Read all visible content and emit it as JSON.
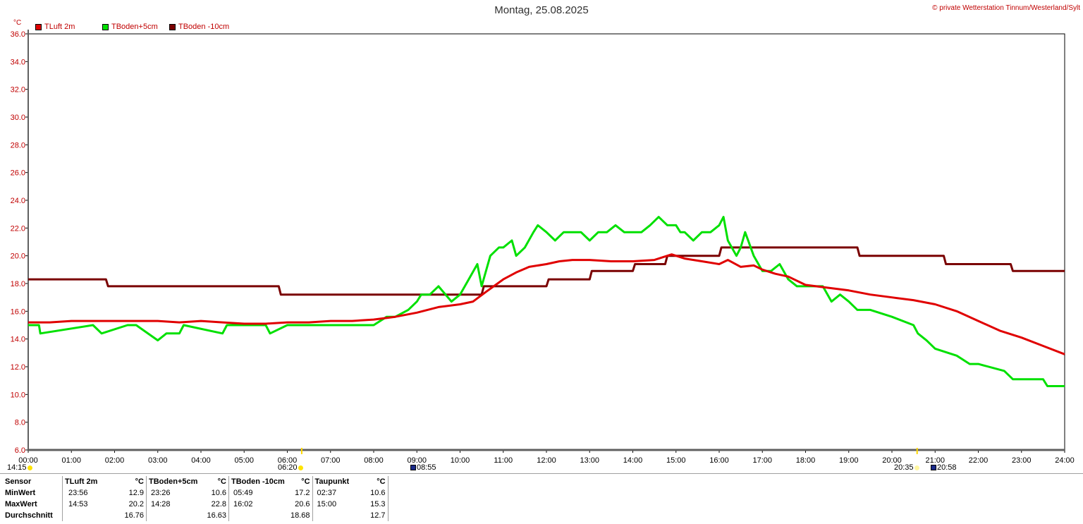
{
  "title": "Montag, 25.08.2025",
  "copyright": "© private Wetterstation Tinnum/Westerland/Sylt",
  "unit": "°C",
  "chart_data": {
    "type": "line",
    "title": "Montag, 25.08.2025",
    "ylabel": "°C",
    "ylim": [
      6,
      36
    ],
    "yticks": [
      "6.0",
      "8.0",
      "10.0",
      "12.0",
      "14.0",
      "16.0",
      "18.0",
      "20.0",
      "22.0",
      "24.0",
      "26.0",
      "28.0",
      "30.0",
      "32.0",
      "34.0",
      "36.0"
    ],
    "xlim": [
      0,
      24
    ],
    "xticks": [
      "00:00",
      "01:00",
      "02:00",
      "03:00",
      "04:00",
      "05:00",
      "06:00",
      "07:00",
      "08:00",
      "09:00",
      "10:00",
      "11:00",
      "12:00",
      "13:00",
      "14:00",
      "15:00",
      "16:00",
      "17:00",
      "18:00",
      "19:00",
      "20:00",
      "21:00",
      "22:00",
      "23:00",
      "24:00"
    ],
    "grid": true,
    "legend_position": "top-left",
    "series": [
      {
        "name": "TLuft 2m",
        "color": "#e00000",
        "x": [
          0,
          0.5,
          1,
          1.5,
          2,
          2.5,
          3,
          3.5,
          4,
          4.5,
          5,
          5.5,
          6,
          6.5,
          7,
          7.5,
          8,
          8.5,
          9,
          9.5,
          10,
          10.3,
          10.6,
          11,
          11.3,
          11.6,
          12,
          12.3,
          12.6,
          13,
          13.5,
          14,
          14.5,
          14.9,
          15.2,
          15.6,
          16,
          16.2,
          16.5,
          16.8,
          17,
          17.3,
          17.6,
          18,
          18.5,
          19,
          19.5,
          20,
          20.5,
          21,
          21.5,
          22,
          22.5,
          23,
          23.5,
          24
        ],
        "values": [
          15.2,
          15.2,
          15.3,
          15.3,
          15.3,
          15.3,
          15.3,
          15.2,
          15.3,
          15.2,
          15.1,
          15.1,
          15.2,
          15.2,
          15.3,
          15.3,
          15.4,
          15.6,
          15.9,
          16.3,
          16.5,
          16.7,
          17.4,
          18.3,
          18.8,
          19.2,
          19.4,
          19.6,
          19.7,
          19.7,
          19.6,
          19.6,
          19.7,
          20.1,
          19.8,
          19.6,
          19.4,
          19.7,
          19.2,
          19.3,
          19.0,
          18.7,
          18.5,
          17.9,
          17.7,
          17.5,
          17.2,
          17.0,
          16.8,
          16.5,
          16.0,
          15.3,
          14.6,
          14.1,
          13.5,
          12.9
        ]
      },
      {
        "name": "TBoden+5cm",
        "color": "#00e000",
        "x": [
          0,
          0.25,
          0.28,
          1.5,
          1.7,
          2.3,
          2.5,
          3.0,
          3.2,
          3.5,
          3.6,
          4.5,
          4.6,
          5.5,
          5.6,
          6.0,
          6.25,
          6.5,
          7.0,
          8.0,
          8.3,
          8.5,
          8.8,
          9.0,
          9.1,
          9.3,
          9.5,
          9.8,
          10.0,
          10.2,
          10.4,
          10.5,
          10.7,
          10.9,
          11.0,
          11.2,
          11.3,
          11.5,
          11.7,
          11.8,
          12.0,
          12.2,
          12.4,
          12.6,
          12.8,
          13.0,
          13.2,
          13.4,
          13.6,
          13.8,
          14.0,
          14.2,
          14.4,
          14.6,
          14.8,
          15.0,
          15.1,
          15.2,
          15.4,
          15.6,
          15.8,
          16.0,
          16.1,
          16.2,
          16.4,
          16.5,
          16.6,
          16.8,
          17.0,
          17.2,
          17.4,
          17.6,
          17.8,
          18.0,
          18.4,
          18.6,
          18.8,
          19.0,
          19.2,
          19.5,
          20.0,
          20.5,
          20.6,
          20.8,
          21.0,
          21.5,
          21.8,
          22.0,
          22.6,
          22.8,
          23.5,
          23.6,
          24.0
        ],
        "values": [
          15.0,
          15.0,
          14.4,
          15.0,
          14.4,
          15.0,
          15.0,
          13.9,
          14.4,
          14.4,
          15.0,
          14.4,
          15.0,
          15.0,
          14.4,
          15.0,
          15.0,
          15.0,
          15.0,
          15.0,
          15.6,
          15.6,
          16.1,
          16.7,
          17.2,
          17.2,
          17.8,
          16.7,
          17.2,
          18.3,
          19.4,
          17.8,
          20.0,
          20.6,
          20.6,
          21.1,
          20.0,
          20.6,
          21.7,
          22.2,
          21.7,
          21.1,
          21.7,
          21.7,
          21.7,
          21.1,
          21.7,
          21.7,
          22.2,
          21.7,
          21.7,
          21.7,
          22.2,
          22.8,
          22.2,
          22.2,
          21.7,
          21.7,
          21.1,
          21.7,
          21.7,
          22.2,
          22.8,
          21.1,
          20.0,
          20.6,
          21.7,
          20.0,
          18.9,
          18.9,
          19.4,
          18.3,
          17.8,
          17.8,
          17.8,
          16.7,
          17.2,
          16.7,
          16.1,
          16.1,
          15.6,
          15.0,
          14.4,
          13.9,
          13.3,
          12.8,
          12.2,
          12.2,
          11.7,
          11.1,
          11.1,
          10.6,
          10.6
        ]
      },
      {
        "name": "TBoden -10cm",
        "color": "#7a0000",
        "x": [
          0,
          1.8,
          1.85,
          5.8,
          5.85,
          10.5,
          10.55,
          12.0,
          12.05,
          13.0,
          13.05,
          14.0,
          14.05,
          14.75,
          14.8,
          16.0,
          16.05,
          19.2,
          19.25,
          21.2,
          21.25,
          22.75,
          22.8,
          24
        ],
        "values": [
          18.3,
          18.3,
          17.8,
          17.8,
          17.2,
          17.2,
          17.8,
          17.8,
          18.3,
          18.3,
          18.9,
          18.9,
          19.4,
          19.4,
          20.0,
          20.0,
          20.6,
          20.6,
          20.0,
          20.0,
          19.4,
          19.4,
          18.9,
          18.9
        ]
      }
    ]
  },
  "astro": {
    "sunrise_row1": "14:15",
    "sunrise": "06:20",
    "moonrise": "08:55",
    "sunset": "20:35",
    "moonset": "20:58"
  },
  "stats": {
    "header": {
      "sensor": "Sensor",
      "tluft": "TLuft 2m",
      "tluft_unit": "°C",
      "tb5": "TBoden+5cm",
      "tb5_unit": "°C",
      "tb10": "TBoden -10cm",
      "tb10_unit": "°C",
      "tau": "Taupunkt",
      "tau_unit": "°C"
    },
    "min": {
      "label": "MinWert",
      "tluft_t": "23:56",
      "tluft_v": "12.9",
      "tb5_t": "23:26",
      "tb5_v": "10.6",
      "tb10_t": "05:49",
      "tb10_v": "17.2",
      "tau_t": "02:37",
      "tau_v": "10.6"
    },
    "max": {
      "label": "MaxWert",
      "tluft_t": "14:53",
      "tluft_v": "20.2",
      "tb5_t": "14:28",
      "tb5_v": "22.8",
      "tb10_t": "16:02",
      "tb10_v": "20.6",
      "tau_t": "15:00",
      "tau_v": "15.3"
    },
    "avg": {
      "label": "Durchschnitt",
      "tluft_v": "16.76",
      "tb5_v": "16.63",
      "tb10_v": "18.68",
      "tau_v": "12.7"
    }
  }
}
